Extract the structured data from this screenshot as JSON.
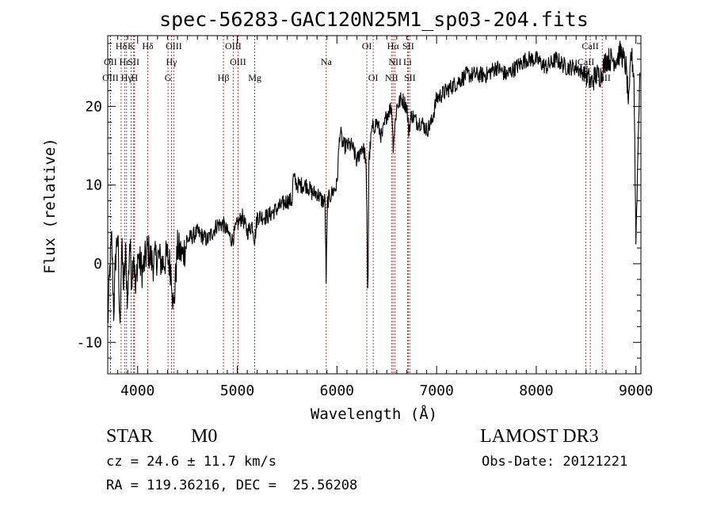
{
  "chart_data": {
    "type": "line",
    "title": "spec-56283-GAC120N25M1_sp03-204.fits",
    "xlabel": "Wavelength (Å)",
    "ylabel": "Flux (relative)",
    "xlim": [
      3700,
      9050
    ],
    "ylim": [
      -14,
      29
    ],
    "xticks": [
      4000,
      5000,
      6000,
      7000,
      8000,
      9000
    ],
    "yticks": [
      -10,
      0,
      10,
      20
    ],
    "grid": false,
    "line_color": "#000000",
    "marker_color": "#b22222",
    "series": [
      {
        "x": [
          3700,
          3720,
          3740,
          3760,
          3780,
          3800,
          3820,
          3840,
          3860,
          3880,
          3900,
          3920,
          3940,
          3960,
          3980,
          4000,
          4050,
          4100,
          4150,
          4200,
          4250,
          4300,
          4340,
          4360,
          4400,
          4450,
          4500,
          4600,
          4700,
          4800,
          4860,
          4900,
          4950,
          5000,
          5050,
          5100,
          5150,
          5175,
          5200,
          5300,
          5400,
          5500,
          5550,
          5560,
          5600,
          5650,
          5700,
          5750,
          5800,
          5850,
          5880,
          5892,
          5905,
          5950,
          6000,
          6030,
          6060,
          6100,
          6150,
          6200,
          6250,
          6280,
          6290,
          6300,
          6310,
          6320,
          6350,
          6400,
          6450,
          6500,
          6550,
          6563,
          6600,
          6650,
          6700,
          6720,
          6750,
          6800,
          6850,
          6900,
          6950,
          7000,
          7100,
          7200,
          7300,
          7400,
          7500,
          7600,
          7700,
          7800,
          7900,
          8000,
          8100,
          8200,
          8300,
          8400,
          8500,
          8550,
          8600,
          8650,
          8700,
          8750,
          8800,
          8850,
          8900,
          8930,
          8950,
          8980,
          9000,
          9040
        ],
        "y": [
          -8,
          -1,
          3,
          -6,
          1,
          4,
          -8,
          2,
          -3,
          1,
          -5,
          3,
          -2,
          2,
          -4,
          1,
          -1,
          2,
          0,
          1,
          0,
          1,
          -1,
          -6,
          2,
          1,
          3,
          4,
          3,
          5,
          5,
          4,
          3,
          5,
          6,
          4,
          5,
          3,
          6,
          6,
          7,
          8,
          8,
          11,
          10,
          10,
          10,
          9,
          9,
          8,
          8,
          -2,
          8,
          9,
          10,
          17,
          15,
          15,
          15,
          13,
          15,
          14,
          13,
          6,
          -5,
          13,
          17,
          18,
          16,
          19,
          20,
          15,
          20,
          21,
          20,
          17,
          19,
          18,
          18,
          17,
          18,
          21,
          22,
          23,
          24,
          24,
          24,
          25,
          24,
          25,
          26,
          26,
          25,
          26,
          25,
          25,
          24,
          23,
          24,
          24,
          26,
          26,
          26,
          27,
          25,
          20,
          27,
          24,
          3,
          25
        ]
      }
    ],
    "lines": [
      {
        "name": "Hδ",
        "x": 3835,
        "row": 0
      },
      {
        "name": "OII",
        "x": 3727,
        "row": 1
      },
      {
        "name": "OIII",
        "x": 3727,
        "row": 2
      },
      {
        "name": "Hε",
        "x": 3870,
        "row": 1
      },
      {
        "name": "Hγ",
        "x": 3889,
        "row": 2
      },
      {
        "name": "K",
        "x": 3934,
        "row": 0
      },
      {
        "name": "SII",
        "x": 3960,
        "row": 1
      },
      {
        "name": "H",
        "x": 3969,
        "row": 2
      },
      {
        "name": "Hδ",
        "x": 4102,
        "row": 0
      },
      {
        "name": "G",
        "x": 4305,
        "row": 2
      },
      {
        "name": "OIII",
        "x": 4363,
        "row": 0
      },
      {
        "name": "Hγ",
        "x": 4340,
        "row": 1
      },
      {
        "name": "Hβ",
        "x": 4861,
        "row": 2
      },
      {
        "name": "OIII",
        "x": 4959,
        "row": 0
      },
      {
        "name": "OIII",
        "x": 5007,
        "row": 1
      },
      {
        "name": "Mg",
        "x": 5175,
        "row": 2
      },
      {
        "name": "Na",
        "x": 5893,
        "row": 1
      },
      {
        "name": "OI",
        "x": 6300,
        "row": 0
      },
      {
        "name": "OI",
        "x": 6364,
        "row": 2
      },
      {
        "name": "Hα",
        "x": 6563,
        "row": 0
      },
      {
        "name": "NII",
        "x": 6583,
        "row": 1
      },
      {
        "name": "NII",
        "x": 6548,
        "row": 2
      },
      {
        "name": "SII",
        "x": 6716,
        "row": 0
      },
      {
        "name": "Li",
        "x": 6708,
        "row": 1
      },
      {
        "name": "SII",
        "x": 6731,
        "row": 2
      },
      {
        "name": "CaII",
        "x": 8542,
        "row": 0
      },
      {
        "name": "CaII",
        "x": 8498,
        "row": 1
      },
      {
        "name": "CaII",
        "x": 8662,
        "row": 2
      }
    ]
  },
  "info": {
    "object_class": "STAR",
    "subclass": "M0",
    "survey": "LAMOST DR3",
    "cz_text": "cz = 24.6 ± 11.7 km/s",
    "obs_date": "Obs-Date: 20121221",
    "coords": "RA = 119.36216, DEC =  25.56208"
  }
}
